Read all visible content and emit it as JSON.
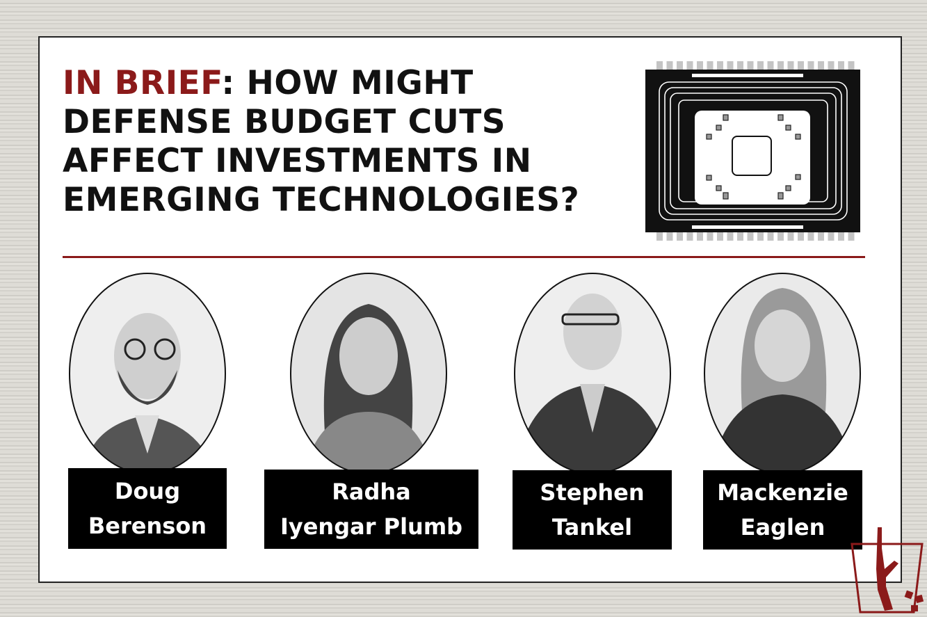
{
  "title": {
    "accent": "IN BRIEF",
    "rest": ": HOW MIGHT DEFENSE BUDGET CUTS AFFECT INVESTMENTS IN EMERGING TECHNOLOGIES?"
  },
  "colors": {
    "accent": "#8b1a1a",
    "namebox": "#000000",
    "background": "#d9d7d1"
  },
  "people": [
    {
      "first": "Doug",
      "last": "Berenson"
    },
    {
      "first": "Radha",
      "last": "Iyengar Plumb"
    },
    {
      "first": "Stephen",
      "last": "Tankel"
    },
    {
      "first": "Mackenzie",
      "last": "Eaglen"
    }
  ],
  "icons": {
    "illustration": "microchip-icon",
    "logo": "rifle-in-trash-logo"
  }
}
